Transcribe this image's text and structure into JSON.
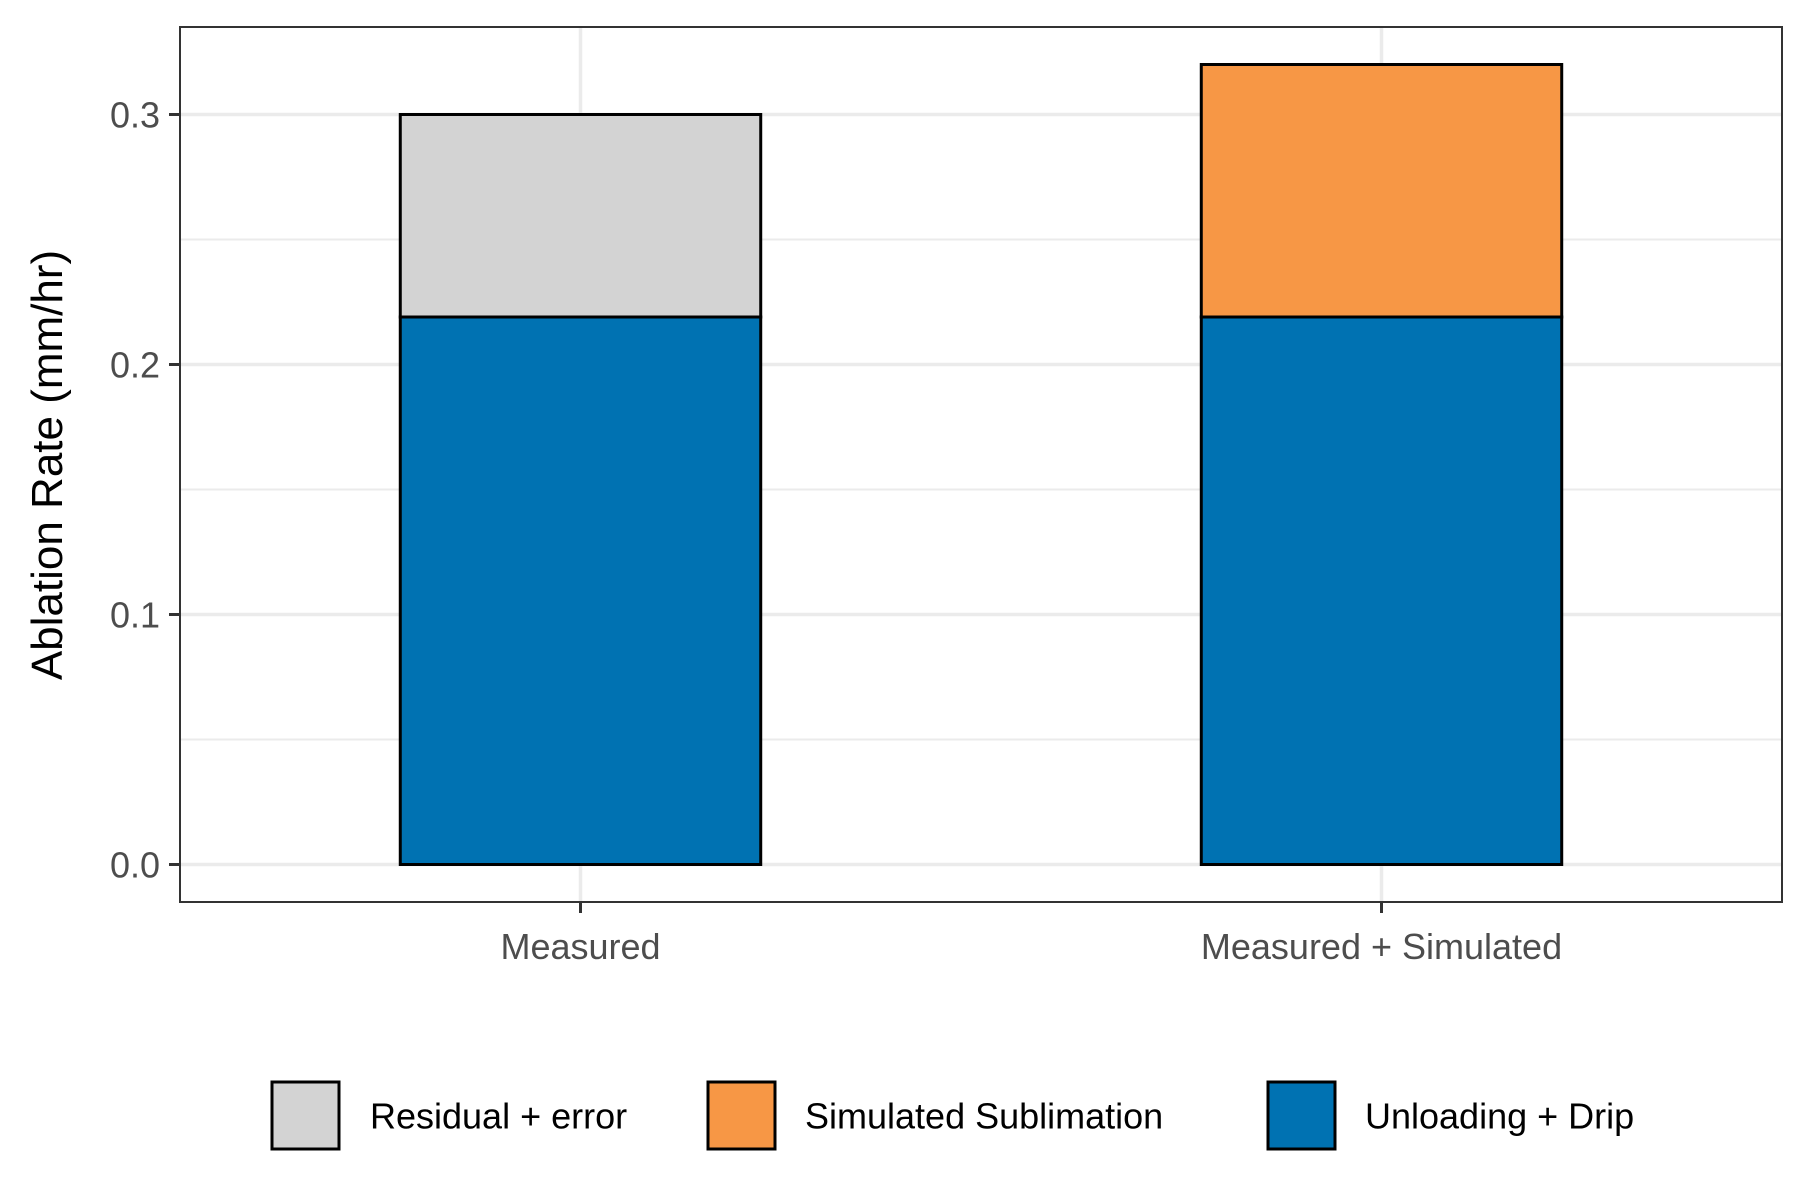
{
  "chart_data": {
    "type": "bar",
    "stacked": true,
    "categories": [
      "Measured",
      "Measured + Simulated"
    ],
    "series": [
      {
        "name": "Unloading + Drip",
        "values": [
          0.219,
          0.219
        ],
        "color": "#0072B2"
      },
      {
        "name": "Residual + error",
        "values": [
          0.081,
          0
        ],
        "color": "#D3D3D3"
      },
      {
        "name": "Simulated Sublimation",
        "values": [
          0,
          0.101
        ],
        "color": "#F79745"
      }
    ],
    "legend_order": [
      "Residual + error",
      "Simulated Sublimation",
      "Unloading + Drip"
    ],
    "xlabel": "",
    "ylabel": "Ablation Rate (mm/hr)",
    "ylim": [
      -0.015,
      0.335
    ],
    "yticks": [
      0.0,
      0.1,
      0.2,
      0.3
    ],
    "ytick_labels": [
      "0.0",
      "0.1",
      "0.2",
      "0.3"
    ],
    "grid": true,
    "legend_position": "bottom"
  }
}
